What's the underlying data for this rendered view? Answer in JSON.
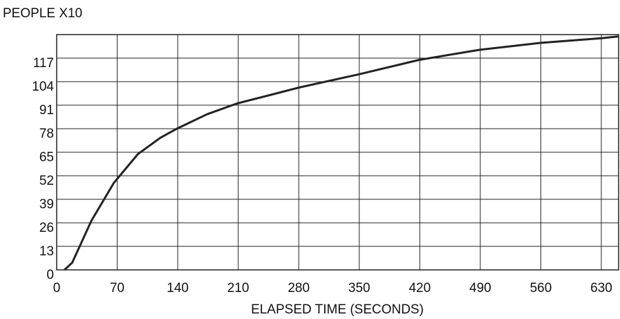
{
  "chart_data": {
    "type": "line",
    "y_label": "PEOPLE X10",
    "x_label": "ELAPSED TIME (SECONDS)",
    "x": [
      9,
      18,
      40,
      66,
      94,
      120,
      139,
      174,
      209,
      254,
      279,
      349,
      419,
      489,
      559,
      630,
      650
    ],
    "series": [
      {
        "color": "#222222",
        "values": [
          0,
          4,
          27,
          48,
          64,
          73,
          78,
          86,
          92,
          97.5,
          100.6,
          108,
          116,
          121.6,
          125.4,
          128,
          129
        ]
      }
    ],
    "xlim": [
      0,
      650
    ],
    "xticks": [
      0,
      70,
      140,
      210,
      280,
      350,
      420,
      490,
      560,
      630
    ],
    "ylim": [
      0,
      130
    ],
    "yticks": [
      0,
      13,
      26,
      39,
      52,
      65,
      78,
      91,
      104,
      117
    ],
    "grid": true
  }
}
